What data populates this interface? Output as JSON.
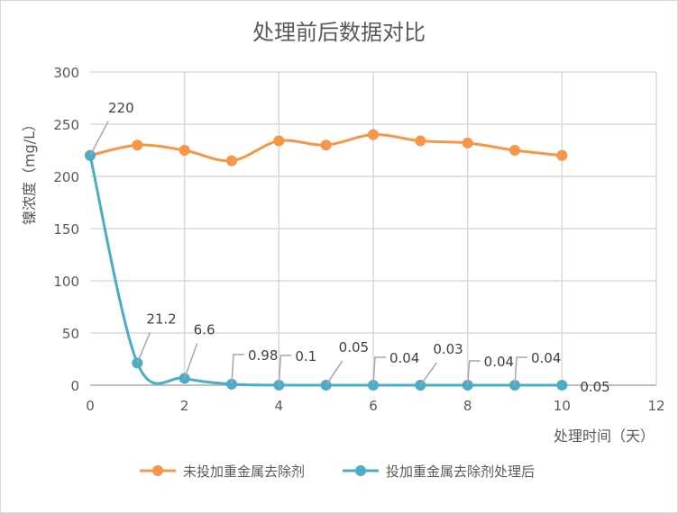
{
  "chart_data": {
    "type": "line",
    "title": "处理前后数据对比",
    "xlabel": "处理时间（天）",
    "ylabel": "镍浓度（mg/L）",
    "xlim": [
      0,
      12
    ],
    "ylim": [
      0,
      300
    ],
    "xticks": [
      0,
      2,
      4,
      6,
      8,
      10,
      12
    ],
    "yticks": [
      0,
      50,
      100,
      150,
      200,
      250,
      300
    ],
    "grid": true,
    "legend": "bottom",
    "x": [
      0,
      1,
      2,
      3,
      4,
      5,
      6,
      7,
      8,
      9,
      10
    ],
    "series": [
      {
        "name": "未投加重金属去除剂",
        "color": "#F79646",
        "values": [
          220,
          230,
          225,
          215,
          234,
          230,
          240,
          234,
          232,
          225,
          220
        ],
        "labels": []
      },
      {
        "name": "投加重金属去除剂处理后",
        "color": "#4BACC6",
        "values": [
          220,
          21.2,
          6.6,
          0.98,
          0.1,
          0.05,
          0.04,
          0.03,
          0.04,
          0.04,
          0.05
        ],
        "labels": [
          "220",
          "21.2",
          "6.6",
          "0.98",
          "0.1",
          "0.05",
          "0.04",
          "0.03",
          "0.04",
          "0.04",
          "0.05"
        ]
      }
    ]
  }
}
